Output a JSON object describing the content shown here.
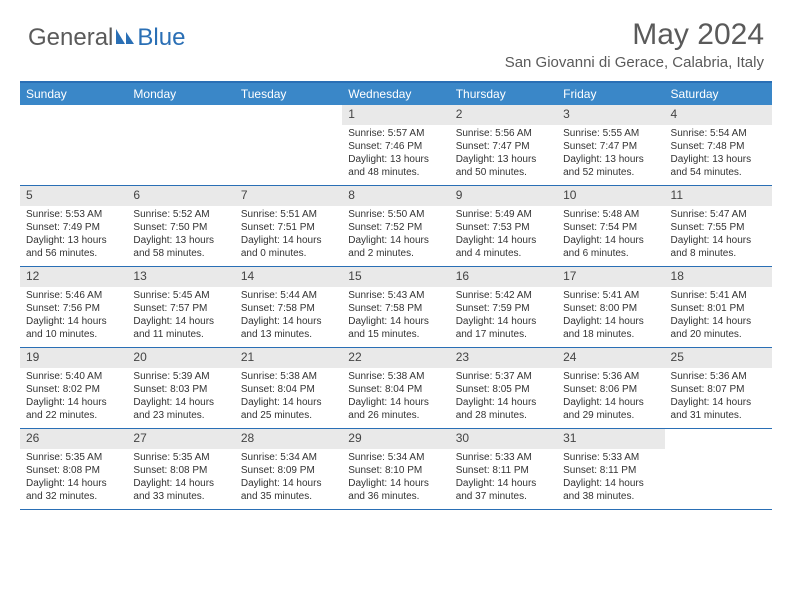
{
  "logo": {
    "part1": "General",
    "part2": "Blue"
  },
  "title": "May 2024",
  "location": "San Giovanni di Gerace, Calabria, Italy",
  "colors": {
    "header_bg": "#3a87c8",
    "header_text": "#ffffff",
    "border": "#2a6fb5",
    "daynum_bg": "#e9e9e9",
    "body_text": "#333333",
    "title_text": "#5a5a5a",
    "logo_gray": "#5a5a5a",
    "logo_blue": "#2a6fb5"
  },
  "day_headers": [
    "Sunday",
    "Monday",
    "Tuesday",
    "Wednesday",
    "Thursday",
    "Friday",
    "Saturday"
  ],
  "weeks": [
    [
      {
        "n": "",
        "sr": "",
        "ss": "",
        "dl": ""
      },
      {
        "n": "",
        "sr": "",
        "ss": "",
        "dl": ""
      },
      {
        "n": "",
        "sr": "",
        "ss": "",
        "dl": ""
      },
      {
        "n": "1",
        "sr": "Sunrise: 5:57 AM",
        "ss": "Sunset: 7:46 PM",
        "dl": "Daylight: 13 hours and 48 minutes."
      },
      {
        "n": "2",
        "sr": "Sunrise: 5:56 AM",
        "ss": "Sunset: 7:47 PM",
        "dl": "Daylight: 13 hours and 50 minutes."
      },
      {
        "n": "3",
        "sr": "Sunrise: 5:55 AM",
        "ss": "Sunset: 7:47 PM",
        "dl": "Daylight: 13 hours and 52 minutes."
      },
      {
        "n": "4",
        "sr": "Sunrise: 5:54 AM",
        "ss": "Sunset: 7:48 PM",
        "dl": "Daylight: 13 hours and 54 minutes."
      }
    ],
    [
      {
        "n": "5",
        "sr": "Sunrise: 5:53 AM",
        "ss": "Sunset: 7:49 PM",
        "dl": "Daylight: 13 hours and 56 minutes."
      },
      {
        "n": "6",
        "sr": "Sunrise: 5:52 AM",
        "ss": "Sunset: 7:50 PM",
        "dl": "Daylight: 13 hours and 58 minutes."
      },
      {
        "n": "7",
        "sr": "Sunrise: 5:51 AM",
        "ss": "Sunset: 7:51 PM",
        "dl": "Daylight: 14 hours and 0 minutes."
      },
      {
        "n": "8",
        "sr": "Sunrise: 5:50 AM",
        "ss": "Sunset: 7:52 PM",
        "dl": "Daylight: 14 hours and 2 minutes."
      },
      {
        "n": "9",
        "sr": "Sunrise: 5:49 AM",
        "ss": "Sunset: 7:53 PM",
        "dl": "Daylight: 14 hours and 4 minutes."
      },
      {
        "n": "10",
        "sr": "Sunrise: 5:48 AM",
        "ss": "Sunset: 7:54 PM",
        "dl": "Daylight: 14 hours and 6 minutes."
      },
      {
        "n": "11",
        "sr": "Sunrise: 5:47 AM",
        "ss": "Sunset: 7:55 PM",
        "dl": "Daylight: 14 hours and 8 minutes."
      }
    ],
    [
      {
        "n": "12",
        "sr": "Sunrise: 5:46 AM",
        "ss": "Sunset: 7:56 PM",
        "dl": "Daylight: 14 hours and 10 minutes."
      },
      {
        "n": "13",
        "sr": "Sunrise: 5:45 AM",
        "ss": "Sunset: 7:57 PM",
        "dl": "Daylight: 14 hours and 11 minutes."
      },
      {
        "n": "14",
        "sr": "Sunrise: 5:44 AM",
        "ss": "Sunset: 7:58 PM",
        "dl": "Daylight: 14 hours and 13 minutes."
      },
      {
        "n": "15",
        "sr": "Sunrise: 5:43 AM",
        "ss": "Sunset: 7:58 PM",
        "dl": "Daylight: 14 hours and 15 minutes."
      },
      {
        "n": "16",
        "sr": "Sunrise: 5:42 AM",
        "ss": "Sunset: 7:59 PM",
        "dl": "Daylight: 14 hours and 17 minutes."
      },
      {
        "n": "17",
        "sr": "Sunrise: 5:41 AM",
        "ss": "Sunset: 8:00 PM",
        "dl": "Daylight: 14 hours and 18 minutes."
      },
      {
        "n": "18",
        "sr": "Sunrise: 5:41 AM",
        "ss": "Sunset: 8:01 PM",
        "dl": "Daylight: 14 hours and 20 minutes."
      }
    ],
    [
      {
        "n": "19",
        "sr": "Sunrise: 5:40 AM",
        "ss": "Sunset: 8:02 PM",
        "dl": "Daylight: 14 hours and 22 minutes."
      },
      {
        "n": "20",
        "sr": "Sunrise: 5:39 AM",
        "ss": "Sunset: 8:03 PM",
        "dl": "Daylight: 14 hours and 23 minutes."
      },
      {
        "n": "21",
        "sr": "Sunrise: 5:38 AM",
        "ss": "Sunset: 8:04 PM",
        "dl": "Daylight: 14 hours and 25 minutes."
      },
      {
        "n": "22",
        "sr": "Sunrise: 5:38 AM",
        "ss": "Sunset: 8:04 PM",
        "dl": "Daylight: 14 hours and 26 minutes."
      },
      {
        "n": "23",
        "sr": "Sunrise: 5:37 AM",
        "ss": "Sunset: 8:05 PM",
        "dl": "Daylight: 14 hours and 28 minutes."
      },
      {
        "n": "24",
        "sr": "Sunrise: 5:36 AM",
        "ss": "Sunset: 8:06 PM",
        "dl": "Daylight: 14 hours and 29 minutes."
      },
      {
        "n": "25",
        "sr": "Sunrise: 5:36 AM",
        "ss": "Sunset: 8:07 PM",
        "dl": "Daylight: 14 hours and 31 minutes."
      }
    ],
    [
      {
        "n": "26",
        "sr": "Sunrise: 5:35 AM",
        "ss": "Sunset: 8:08 PM",
        "dl": "Daylight: 14 hours and 32 minutes."
      },
      {
        "n": "27",
        "sr": "Sunrise: 5:35 AM",
        "ss": "Sunset: 8:08 PM",
        "dl": "Daylight: 14 hours and 33 minutes."
      },
      {
        "n": "28",
        "sr": "Sunrise: 5:34 AM",
        "ss": "Sunset: 8:09 PM",
        "dl": "Daylight: 14 hours and 35 minutes."
      },
      {
        "n": "29",
        "sr": "Sunrise: 5:34 AM",
        "ss": "Sunset: 8:10 PM",
        "dl": "Daylight: 14 hours and 36 minutes."
      },
      {
        "n": "30",
        "sr": "Sunrise: 5:33 AM",
        "ss": "Sunset: 8:11 PM",
        "dl": "Daylight: 14 hours and 37 minutes."
      },
      {
        "n": "31",
        "sr": "Sunrise: 5:33 AM",
        "ss": "Sunset: 8:11 PM",
        "dl": "Daylight: 14 hours and 38 minutes."
      },
      {
        "n": "",
        "sr": "",
        "ss": "",
        "dl": ""
      }
    ]
  ]
}
